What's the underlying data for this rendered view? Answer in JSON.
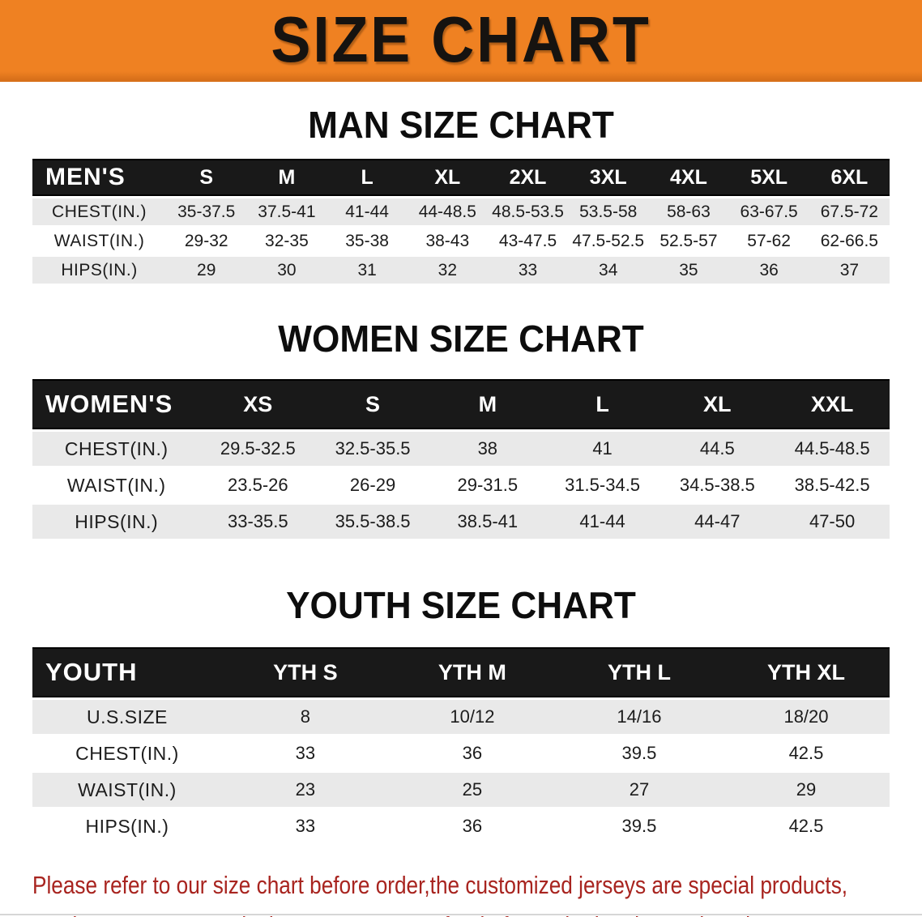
{
  "banner": {
    "title": "SIZE CHART"
  },
  "colors": {
    "banner_bg": "#ef8122",
    "banner_edge": "#d8701a",
    "header_bar": "#191919",
    "row_gray": "#e9e9e9",
    "disclaimer_red": "#a8241f"
  },
  "sections": [
    {
      "heading": "MAN SIZE CHART",
      "corner": "MEN'S",
      "sizes": [
        "S",
        "M",
        "L",
        "XL",
        "2XL",
        "3XL",
        "4XL",
        "5XL",
        "6XL"
      ],
      "rows": [
        {
          "label": "CHEST(IN.)",
          "values": [
            "35-37.5",
            "37.5-41",
            "41-44",
            "44-48.5",
            "48.5-53.5",
            "53.5-58",
            "58-63",
            "63-67.5",
            "67.5-72"
          ]
        },
        {
          "label": "WAIST(IN.)",
          "values": [
            "29-32",
            "32-35",
            "35-38",
            "38-43",
            "43-47.5",
            "47.5-52.5",
            "52.5-57",
            "57-62",
            "62-66.5"
          ]
        },
        {
          "label": "HIPS(IN.)",
          "values": [
            "29",
            "30",
            "31",
            "32",
            "33",
            "34",
            "35",
            "36",
            "37"
          ]
        }
      ]
    },
    {
      "heading": "WOMEN SIZE CHART",
      "corner": "WOMEN'S",
      "sizes": [
        "XS",
        "S",
        "M",
        "L",
        "XL",
        "XXL"
      ],
      "rows": [
        {
          "label": "CHEST(IN.)",
          "values": [
            "29.5-32.5",
            "32.5-35.5",
            "38",
            "41",
            "44.5",
            "44.5-48.5"
          ]
        },
        {
          "label": "WAIST(IN.)",
          "values": [
            "23.5-26",
            "26-29",
            "29-31.5",
            "31.5-34.5",
            "34.5-38.5",
            "38.5-42.5"
          ]
        },
        {
          "label": "HIPS(IN.)",
          "values": [
            "33-35.5",
            "35.5-38.5",
            "38.5-41",
            "41-44",
            "44-47",
            "47-50"
          ]
        }
      ]
    },
    {
      "heading": "YOUTH SIZE CHART",
      "corner": "YOUTH",
      "sizes": [
        "YTH S",
        "YTH M",
        "YTH L",
        "YTH XL"
      ],
      "rows": [
        {
          "label": "U.S.SIZE",
          "values": [
            "8",
            "10/12",
            "14/16",
            "18/20"
          ]
        },
        {
          "label": "CHEST(IN.)",
          "values": [
            "33",
            "36",
            "39.5",
            "42.5"
          ]
        },
        {
          "label": "WAIST(IN.)",
          "values": [
            "23",
            "25",
            "27",
            "29"
          ]
        },
        {
          "label": "HIPS(IN.)",
          "values": [
            "33",
            "36",
            "39.5",
            "42.5"
          ]
        }
      ]
    }
  ],
  "disclaimer": {
    "line1": "Please refer to our size chart before order,the customized jerseys are special products,",
    "line2": "we don't accept cancel, change, teturn or refund after order has been placed!"
  }
}
